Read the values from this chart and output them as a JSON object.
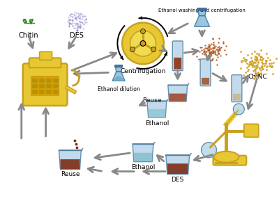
{
  "bg_color": "#ffffff",
  "fig_width": 4.0,
  "fig_height": 3.02,
  "dpi": 100,
  "labels": {
    "chitin": "Chitin",
    "des": "DES",
    "centrifugation": "Centrifugation",
    "ethanol_washing": "Ethanol washing and centrifugation",
    "ethanol_dilution": "Ethanol dilution",
    "reuse_mid": "Reuse",
    "ethanol_beaker": "Ethanol",
    "des_beaker": "DES",
    "reuse_bottom": "Reuse",
    "chinc": "ChiNC"
  },
  "colors": {
    "yellow": "#E8C832",
    "yellow_dark": "#C8A020",
    "blue_light": "#A8C8E8",
    "blue_tube": "#7AB0D8",
    "brown": "#8B4513",
    "brown_light": "#CD853F",
    "green": "#4A9B4A",
    "purple": "#9B7BC0",
    "teal": "#70B8B0",
    "gray_arrow": "#909090",
    "black": "#000000",
    "orange_brown": "#C87820",
    "tan": "#D4A060"
  }
}
